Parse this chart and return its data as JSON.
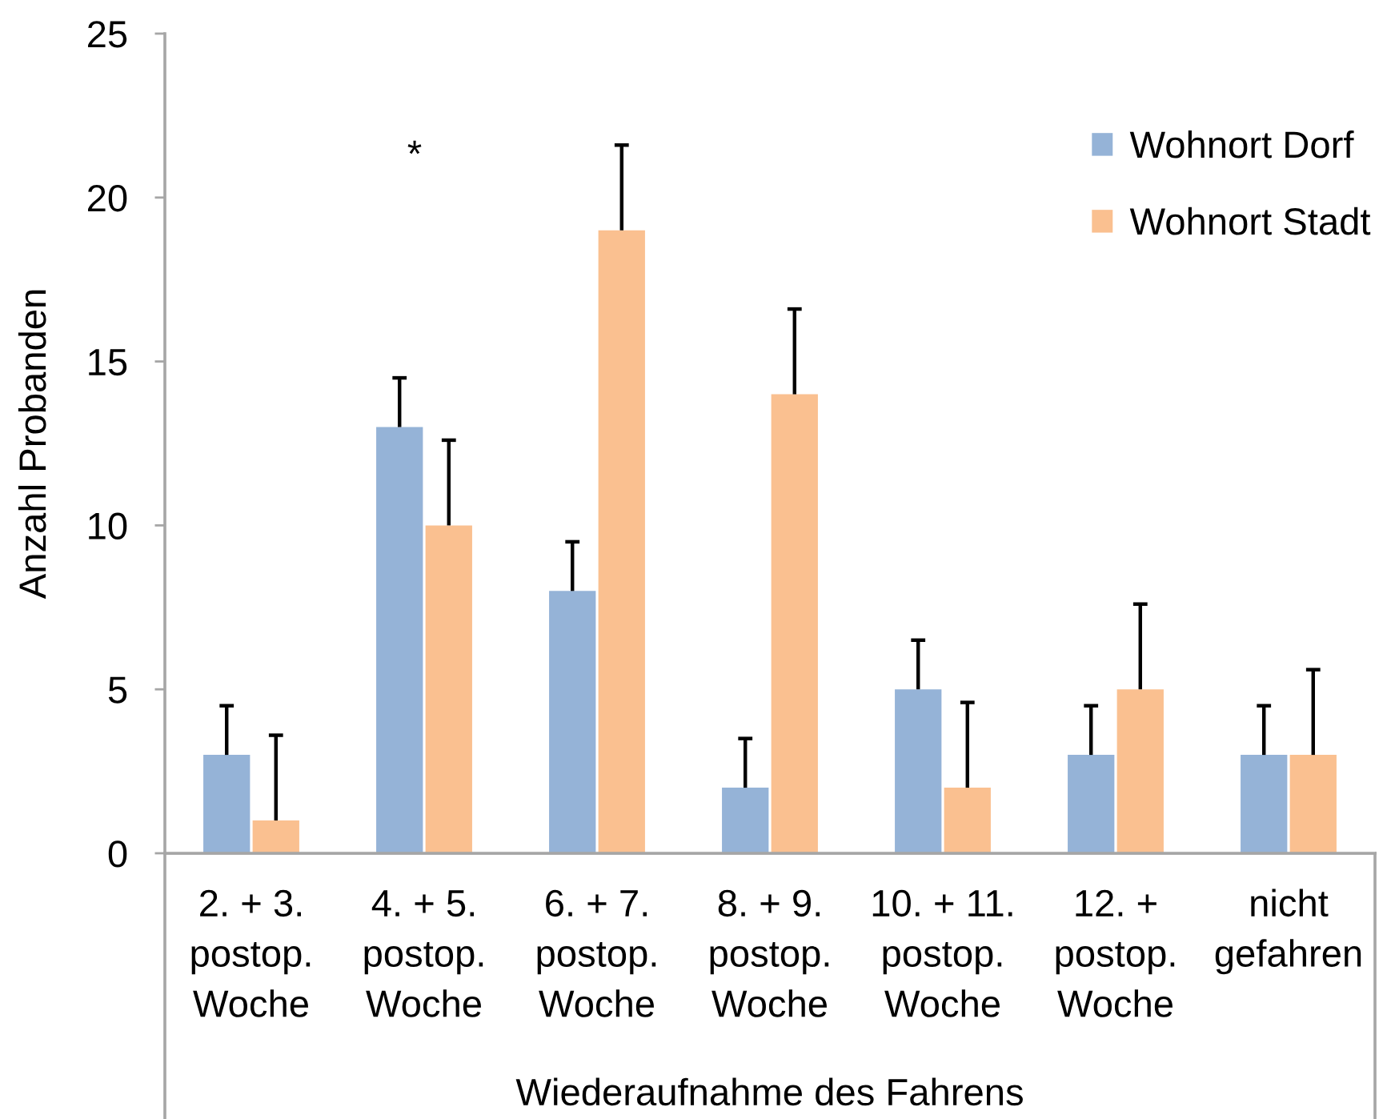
{
  "chart_data": {
    "type": "bar",
    "xlabel": "Wiederaufnahme des Fahrens",
    "ylabel": "Anzahl Probanden",
    "categories": [
      "2. + 3.\npostop.\nWoche",
      "4. + 5.\npostop.\nWoche",
      "6. + 7.\npostop.\nWoche",
      "8. + 9.\npostop.\nWoche",
      "10. + 11.\npostop.\nWoche",
      "12. +\npostop.\nWoche",
      "nicht\ngefahren"
    ],
    "series": [
      {
        "name": "Wohnort Dorf",
        "color": "#95b3d7",
        "values": [
          3,
          13,
          8,
          2,
          5,
          3,
          3
        ],
        "errors": [
          [
            3,
            4.5
          ],
          [
            13,
            14.5
          ],
          [
            8,
            9.5
          ],
          [
            2,
            3.5
          ],
          [
            5,
            6.5
          ],
          [
            3,
            4.5
          ],
          [
            3,
            4.5
          ]
        ]
      },
      {
        "name": "Wohnort Stadt",
        "color": "#fac090",
        "values": [
          1,
          10,
          19,
          14,
          2,
          5,
          3
        ],
        "errors": [
          [
            1,
            3.6
          ],
          [
            10,
            12.6
          ],
          [
            19,
            21.6
          ],
          [
            14,
            16.6
          ],
          [
            2,
            4.6
          ],
          [
            5,
            7.6
          ],
          [
            3,
            5.6
          ]
        ]
      }
    ],
    "ylim": [
      0,
      25
    ],
    "yticks": [
      0,
      5,
      10,
      15,
      20,
      25
    ],
    "annotations": [
      "*"
    ],
    "legend": "top right"
  }
}
